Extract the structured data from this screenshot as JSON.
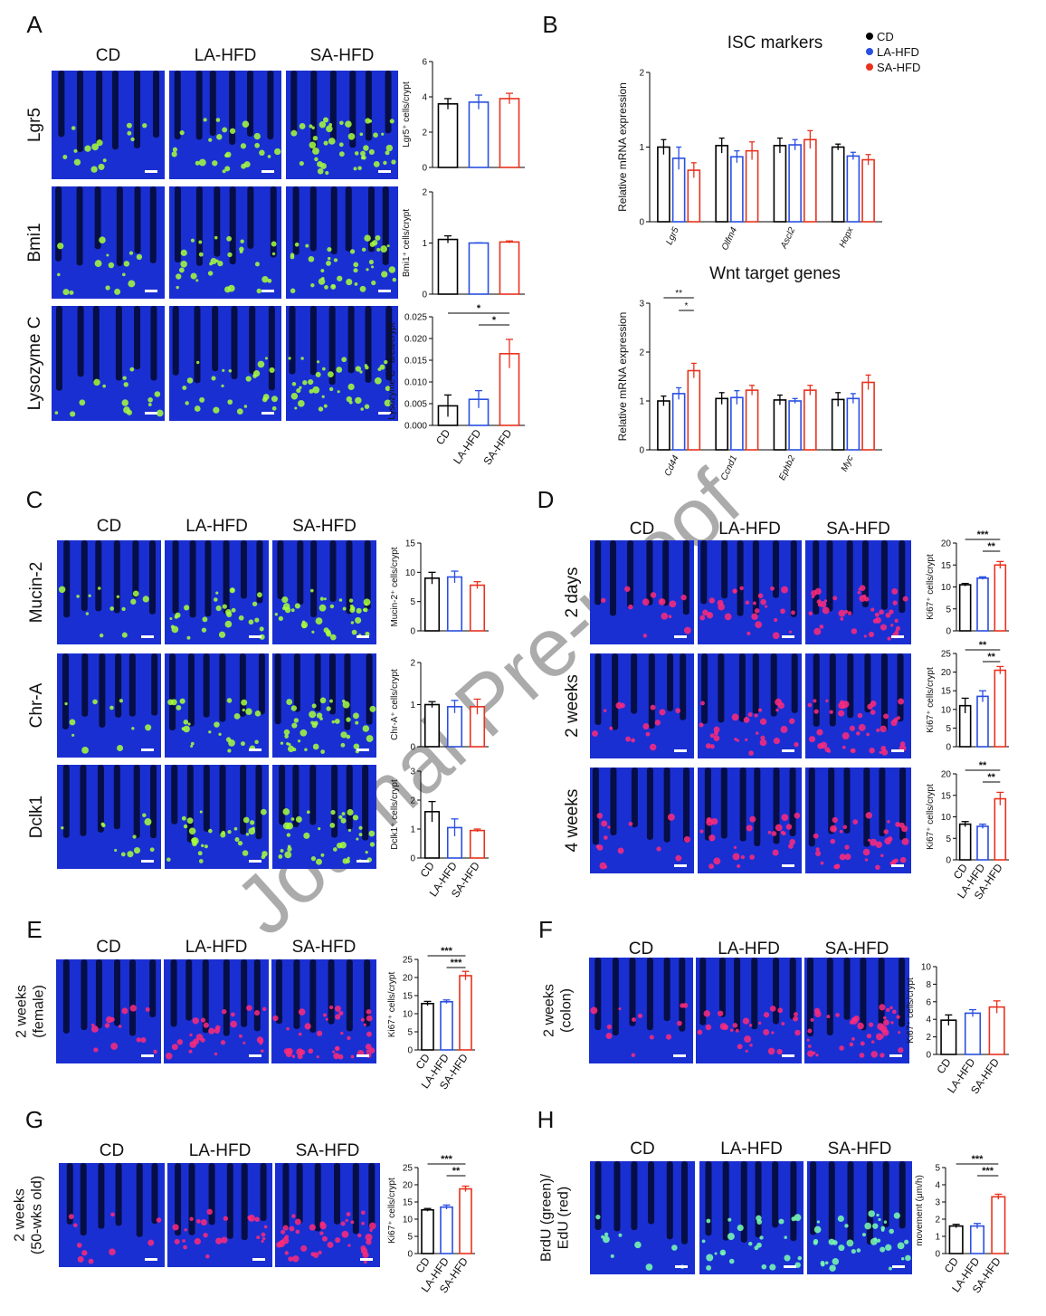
{
  "watermark": "Journal Pre-proof",
  "panels": [
    {
      "letter": "A",
      "columns": [
        "CD",
        "LA-HFD",
        "SA-HFD"
      ],
      "rows": [
        [
          "Lgr5"
        ],
        [
          "Bmi1"
        ],
        [
          "Lysozyme C"
        ]
      ]
    },
    {
      "letter": "B"
    },
    {
      "letter": "C",
      "columns": [
        "CD",
        "LA-HFD",
        "SA-HFD"
      ],
      "rows": [
        [
          "Mucin-2"
        ],
        [
          "Chr-A"
        ],
        [
          "Dclk1"
        ]
      ]
    },
    {
      "letter": "D",
      "columns": [
        "CD",
        "LA-HFD",
        "SA-HFD"
      ],
      "rows": [
        [
          "2 days"
        ],
        [
          "2 weeks"
        ],
        [
          "4 weeks"
        ]
      ]
    },
    {
      "letter": "E",
      "columns": [
        "CD",
        "LA-HFD",
        "SA-HFD"
      ],
      "rows": [
        [
          "2 weeks",
          "(female)"
        ]
      ]
    },
    {
      "letter": "F",
      "columns": [
        "CD",
        "LA-HFD",
        "SA-HFD"
      ],
      "rows": [
        [
          "2 weeks",
          "(colon)"
        ]
      ]
    },
    {
      "letter": "G",
      "columns": [
        "CD",
        "LA-HFD",
        "SA-HFD"
      ],
      "rows": [
        [
          "2 weeks",
          "(50-wks old)"
        ]
      ]
    },
    {
      "letter": "H",
      "columns": [
        "CD",
        "LA-HFD",
        "SA-HFD"
      ],
      "rows": [
        [
          "BrdU (green)/",
          "EdU (red)"
        ]
      ]
    }
  ],
  "chart_data": [
    {
      "type": "bar",
      "ylabel": "Lgr5⁺ cells/crypt",
      "ylim": [
        0,
        6
      ],
      "yticks": [
        0,
        2,
        4,
        6
      ],
      "values": [
        3.6,
        3.7,
        3.9
      ],
      "errors": [
        0.3,
        0.4,
        0.3
      ],
      "colors": [
        "#000000",
        "#2a4fe0",
        "#e8321e"
      ]
    },
    {
      "type": "bar",
      "ylabel": "Bmi1⁺ cells/crypt",
      "ylim": [
        0,
        2
      ],
      "yticks": [
        0,
        1,
        2
      ],
      "values": [
        1.07,
        1.0,
        1.02
      ],
      "errors": [
        0.07,
        0.005,
        0.02
      ],
      "colors": [
        "#000000",
        "#2a4fe0",
        "#e8321e"
      ]
    },
    {
      "type": "bar",
      "ylabel": "Lysozyme C⁺ area/crypt",
      "ylim": [
        0,
        0.025
      ],
      "yticks": [
        {
          "value": 0,
          "label": "0.000"
        },
        {
          "value": 0.005,
          "label": "0.005"
        },
        {
          "value": 0.01,
          "label": "0.010"
        },
        {
          "value": 0.015,
          "label": "0.015"
        },
        {
          "value": 0.02,
          "label": "0.020"
        },
        {
          "value": 0.025,
          "label": "0.025"
        }
      ],
      "values": [
        0.0045,
        0.006,
        0.0165
      ],
      "errors": [
        0.0025,
        0.002,
        0.0033
      ],
      "colors": [
        "#000000",
        "#2a4fe0",
        "#e8321e"
      ],
      "categories": [
        "CD",
        "LA-HFD",
        "SA-HFD"
      ],
      "brackets": [
        {
          "label": "*",
          "groups": [
            0,
            2
          ]
        },
        {
          "label": "*",
          "groups": [
            1,
            2
          ]
        }
      ]
    },
    {
      "type": "grouped_bar",
      "title": "ISC markers",
      "ylabel": "Relative mRNA expression",
      "ylim": [
        0,
        2
      ],
      "yticks": [
        0,
        1,
        2
      ],
      "categories": [
        "Lgr5",
        "Olfm4",
        "Ascl2",
        "Hopx"
      ],
      "legend": "top-right",
      "series": [
        {
          "name": "CD",
          "color": "#000000",
          "values": [
            1.0,
            1.02,
            1.02,
            1.0
          ],
          "errors": [
            0.1,
            0.1,
            0.1,
            0.04
          ]
        },
        {
          "name": "LA-HFD",
          "color": "#2a4fe0",
          "values": [
            0.85,
            0.87,
            1.03,
            0.88
          ],
          "errors": [
            0.15,
            0.08,
            0.07,
            0.05
          ]
        },
        {
          "name": "SA-HFD",
          "color": "#e8321e",
          "values": [
            0.69,
            0.95,
            1.1,
            0.83
          ],
          "errors": [
            0.1,
            0.12,
            0.12,
            0.07
          ]
        }
      ]
    },
    {
      "type": "grouped_bar",
      "title": "Wnt target genes",
      "ylabel": "Relative mRNA expression",
      "ylim": [
        0,
        3
      ],
      "yticks": [
        0,
        1,
        2,
        3
      ],
      "categories": [
        "Cd44",
        "Ccnd1",
        "Ephb2",
        "Myc"
      ],
      "series": [
        {
          "name": "CD",
          "color": "#000000",
          "values": [
            1.0,
            1.05,
            1.02,
            1.03
          ],
          "errors": [
            0.1,
            0.12,
            0.1,
            0.14
          ]
        },
        {
          "name": "LA-HFD",
          "color": "#2a4fe0",
          "values": [
            1.15,
            1.07,
            1.0,
            1.05
          ],
          "errors": [
            0.12,
            0.14,
            0.05,
            0.1
          ]
        },
        {
          "name": "SA-HFD",
          "color": "#e8321e",
          "values": [
            1.62,
            1.22,
            1.22,
            1.38
          ],
          "errors": [
            0.15,
            0.1,
            0.1,
            0.15
          ]
        }
      ],
      "brackets": [
        {
          "label": "**",
          "category": 0,
          "series": [
            0,
            2
          ]
        },
        {
          "label": "*",
          "category": 0,
          "series": [
            1,
            2
          ]
        }
      ]
    },
    {
      "type": "bar",
      "ylabel": "Mucin-2⁺ cells/crypt",
      "ylim": [
        0,
        15
      ],
      "yticks": [
        0,
        5,
        10,
        15
      ],
      "values": [
        9.0,
        9.2,
        7.8
      ],
      "errors": [
        1.0,
        1.0,
        0.6
      ],
      "colors": [
        "#000000",
        "#2a4fe0",
        "#e8321e"
      ]
    },
    {
      "type": "bar",
      "ylabel": "Chr-A⁺ cells/crypt",
      "ylim": [
        0,
        2
      ],
      "yticks": [
        0,
        1,
        2
      ],
      "values": [
        1.0,
        0.95,
        0.95
      ],
      "errors": [
        0.07,
        0.15,
        0.18
      ],
      "colors": [
        "#000000",
        "#2a4fe0",
        "#e8321e"
      ]
    },
    {
      "type": "bar",
      "ylabel": "Dclk1⁺ cells/crypt",
      "ylim": [
        0,
        3
      ],
      "yticks": [
        0,
        1,
        2,
        3
      ],
      "values": [
        1.6,
        1.05,
        0.95
      ],
      "errors": [
        0.35,
        0.3,
        0.05
      ],
      "colors": [
        "#000000",
        "#2a4fe0",
        "#e8321e"
      ],
      "categories": [
        "CD",
        "LA-HFD",
        "SA-HFD"
      ]
    },
    {
      "type": "bar",
      "ylabel": "Ki67⁺ cells/crypt",
      "ylim": [
        0,
        20
      ],
      "yticks": [
        0,
        5,
        10,
        15,
        20
      ],
      "values": [
        10.5,
        12,
        15
      ],
      "errors": [
        0.3,
        0.3,
        0.8
      ],
      "colors": [
        "#000000",
        "#2a4fe0",
        "#e8321e"
      ],
      "brackets": [
        {
          "label": "***",
          "groups": [
            0,
            2
          ]
        },
        {
          "label": "**",
          "groups": [
            1,
            2
          ]
        }
      ]
    },
    {
      "type": "bar",
      "ylabel": "Ki67⁺ cells/crypt",
      "ylim": [
        0,
        25
      ],
      "yticks": [
        0,
        5,
        10,
        15,
        20,
        25
      ],
      "values": [
        11,
        13.5,
        20.5
      ],
      "errors": [
        2,
        1.5,
        1
      ],
      "colors": [
        "#000000",
        "#2a4fe0",
        "#e8321e"
      ],
      "brackets": [
        {
          "label": "**",
          "groups": [
            0,
            2
          ]
        },
        {
          "label": "**",
          "groups": [
            1,
            2
          ]
        }
      ]
    },
    {
      "type": "bar",
      "ylabel": "Ki67⁺ cells/crypt",
      "ylim": [
        0,
        20
      ],
      "yticks": [
        0,
        5,
        10,
        15,
        20
      ],
      "values": [
        8.3,
        7.8,
        14.2
      ],
      "errors": [
        0.6,
        0.5,
        1.5
      ],
      "colors": [
        "#000000",
        "#2a4fe0",
        "#e8321e"
      ],
      "categories": [
        "CD",
        "LA-HFD",
        "SA-HFD"
      ],
      "brackets": [
        {
          "label": "**",
          "groups": [
            0,
            2
          ]
        },
        {
          "label": "**",
          "groups": [
            1,
            2
          ]
        }
      ]
    },
    {
      "type": "bar",
      "ylabel": "Ki67⁺ cells/crypt",
      "ylim": [
        0,
        25
      ],
      "yticks": [
        0,
        5,
        10,
        15,
        20,
        25
      ],
      "values": [
        12.8,
        13.3,
        20.5
      ],
      "errors": [
        0.6,
        0.5,
        1.2
      ],
      "colors": [
        "#000000",
        "#2a4fe0",
        "#e8321e"
      ],
      "categories": [
        "CD",
        "LA-HFD",
        "SA-HFD"
      ],
      "brackets": [
        {
          "label": "***",
          "groups": [
            0,
            2
          ]
        },
        {
          "label": "***",
          "groups": [
            1,
            2
          ]
        }
      ]
    },
    {
      "type": "bar",
      "ylabel": "Ki67⁺ cells/crypt",
      "ylim": [
        0,
        10
      ],
      "yticks": [
        0,
        2,
        4,
        6,
        8,
        10
      ],
      "values": [
        3.9,
        4.7,
        5.4
      ],
      "errors": [
        0.6,
        0.4,
        0.7
      ],
      "colors": [
        "#000000",
        "#2a4fe0",
        "#e8321e"
      ],
      "categories": [
        "CD",
        "LA-HFD",
        "SA-HFD"
      ]
    },
    {
      "type": "bar",
      "ylabel": "Ki67⁺ cells/crypt",
      "ylim": [
        0,
        25
      ],
      "yticks": [
        0,
        5,
        10,
        15,
        20,
        25
      ],
      "values": [
        12.7,
        13.5,
        18.8
      ],
      "errors": [
        0.4,
        0.6,
        0.8
      ],
      "colors": [
        "#000000",
        "#2a4fe0",
        "#e8321e"
      ],
      "categories": [
        "CD",
        "LA-HFD",
        "SA-HFD"
      ],
      "brackets": [
        {
          "label": "***",
          "groups": [
            0,
            2
          ]
        },
        {
          "label": "**",
          "groups": [
            1,
            2
          ]
        }
      ]
    },
    {
      "type": "bar",
      "ylabel": "movement (μm/h)",
      "ylim": [
        0,
        5
      ],
      "yticks": [
        0,
        1,
        2,
        3,
        4,
        5
      ],
      "values": [
        1.6,
        1.6,
        3.3
      ],
      "errors": [
        0.1,
        0.15,
        0.15
      ],
      "colors": [
        "#000000",
        "#2a4fe0",
        "#e8321e"
      ],
      "categories": [
        "CD",
        "LA-HFD",
        "SA-HFD"
      ],
      "brackets": [
        {
          "label": "***",
          "groups": [
            0,
            2
          ]
        },
        {
          "label": "***",
          "groups": [
            1,
            2
          ]
        }
      ]
    }
  ]
}
